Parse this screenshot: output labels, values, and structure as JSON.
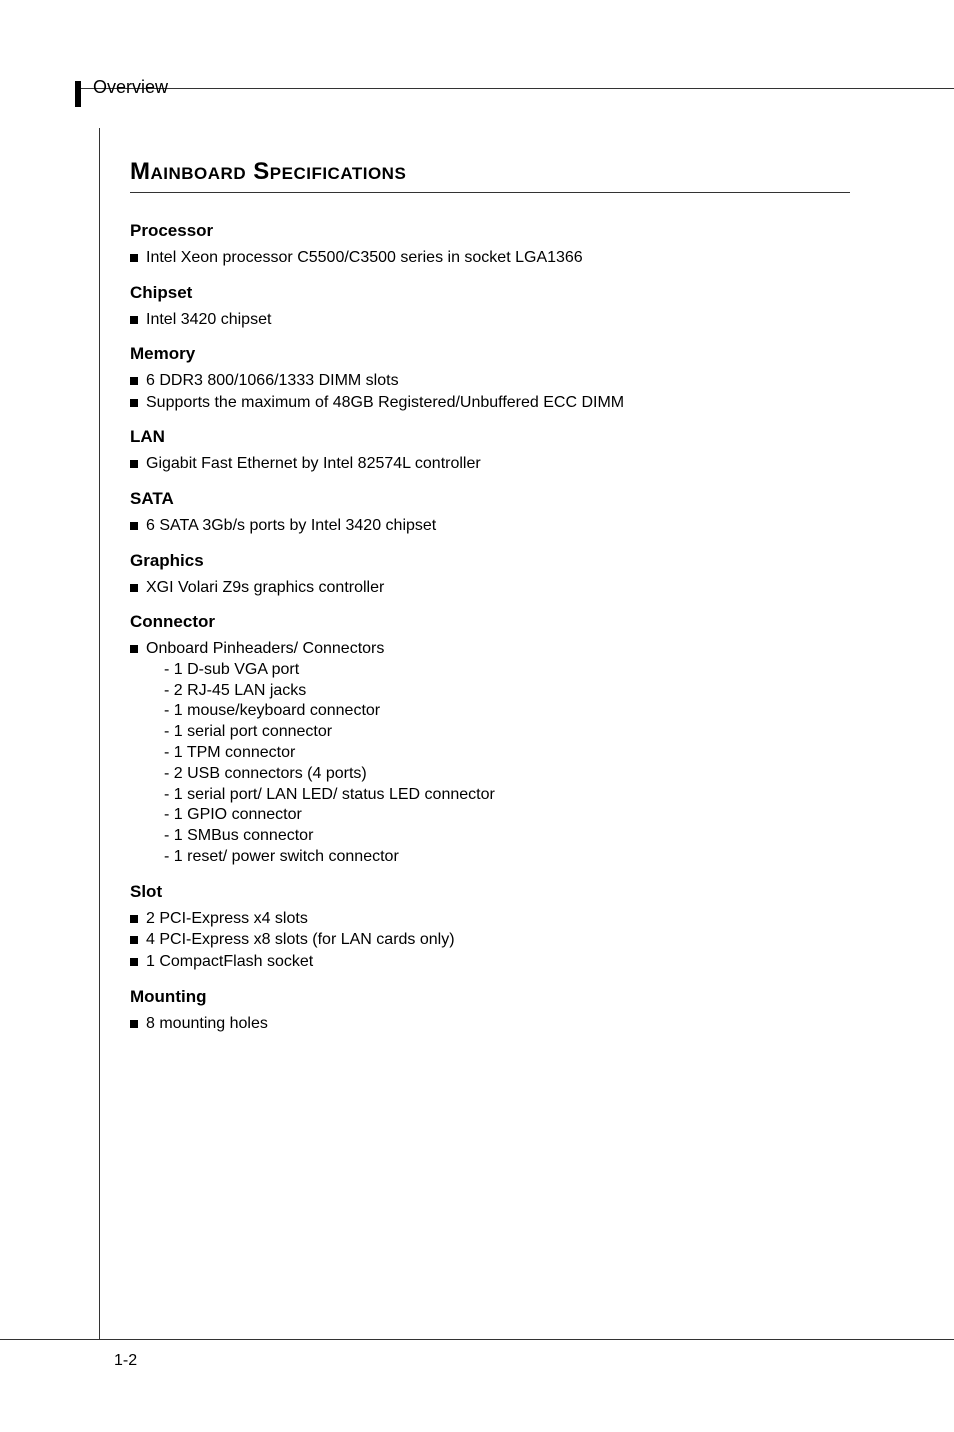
{
  "colors": {
    "background": "#ffffff",
    "text": "#000000",
    "rule": "#333333",
    "bullet": "#000000"
  },
  "typography": {
    "body_font": "Arial, Helvetica, sans-serif",
    "title_size_pt": 18,
    "section_head_size_pt": 13,
    "body_size_pt": 12
  },
  "header": {
    "label": "Overview"
  },
  "title": "Mainboard Specifications",
  "sections": [
    {
      "head": "Processor",
      "bullets": [
        "Intel Xeon processor C5500/C3500 series in socket LGA1366"
      ]
    },
    {
      "head": "Chipset",
      "bullets": [
        "Intel 3420 chipset"
      ]
    },
    {
      "head": "Memory",
      "bullets": [
        "6 DDR3 800/1066/1333 DIMM slots",
        "Supports the maximum of 48GB Registered/Unbuffered ECC DIMM"
      ]
    },
    {
      "head": "LAN",
      "bullets": [
        "Gigabit Fast Ethernet by Intel 82574L controller"
      ]
    },
    {
      "head": "SATA",
      "bullets": [
        "6 SATA 3Gb/s ports by Intel 3420 chipset"
      ]
    },
    {
      "head": "Graphics",
      "bullets": [
        "XGI Volari Z9s graphics controller"
      ]
    },
    {
      "head": "Connector",
      "bullets": [
        "Onboard Pinheaders/ Connectors"
      ],
      "sub": [
        "-  1 D-sub VGA port",
        "-  2 RJ-45 LAN jacks",
        "-  1 mouse/keyboard connector",
        "-  1 serial port connector",
        "-  1 TPM connector",
        "-  2 USB connectors (4 ports)",
        "-  1 serial port/ LAN LED/ status LED connector",
        "-  1 GPIO connector",
        "-  1 SMBus connector",
        "-  1 reset/ power switch connector"
      ]
    },
    {
      "head": "Slot",
      "bullets": [
        "2 PCI-Express x4 slots",
        "4 PCI-Express x8 slots (for LAN cards only)",
        "1 CompactFlash socket"
      ]
    },
    {
      "head": "Mounting",
      "bullets": [
        "8 mounting holes"
      ]
    }
  ],
  "page_number": "1-2"
}
